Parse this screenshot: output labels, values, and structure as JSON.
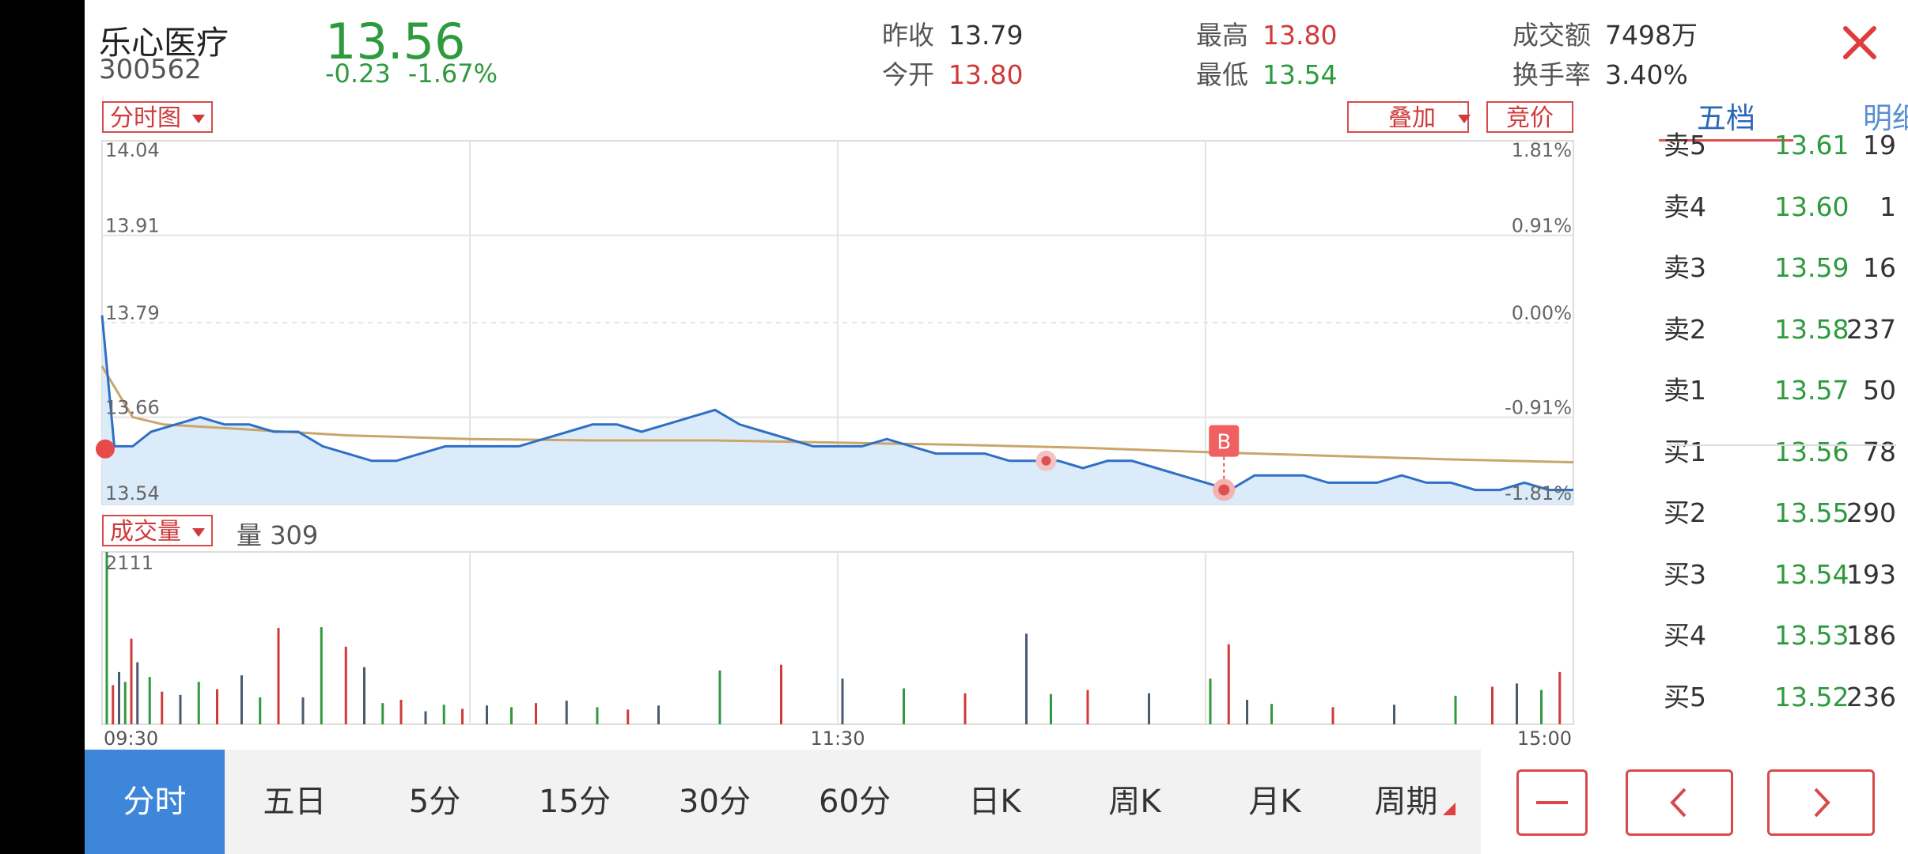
{
  "header": {
    "name": "乐心医疗",
    "code": "300562",
    "price": "13.56",
    "change": "-0.23",
    "change_pct": "-1.67%",
    "close_icon": "close-icon",
    "stats": [
      {
        "label": "昨收",
        "value": "13.79",
        "tone": "flat"
      },
      {
        "label": "今开",
        "value": "13.80",
        "tone": "up"
      },
      {
        "label": "最高",
        "value": "13.80",
        "tone": "up"
      },
      {
        "label": "最低",
        "value": "13.54",
        "tone": "down"
      },
      {
        "label": "成交额",
        "value": "7498万",
        "tone": "flat"
      },
      {
        "label": "换手率",
        "value": "3.40%",
        "tone": "flat"
      }
    ]
  },
  "chart_controls": {
    "chart_type": "分时图",
    "overlay": "叠加",
    "auction": "竞价",
    "volume_selector": "成交量",
    "volume_label": "量",
    "volume_value": "309"
  },
  "order_book": {
    "tabs": [
      "五档",
      "明细"
    ],
    "active_tab": "五档",
    "asks": [
      {
        "label": "卖5",
        "price": "13.61",
        "volume": "19"
      },
      {
        "label": "卖4",
        "price": "13.60",
        "volume": "1"
      },
      {
        "label": "卖3",
        "price": "13.59",
        "volume": "16"
      },
      {
        "label": "卖2",
        "price": "13.58",
        "volume": "237"
      },
      {
        "label": "卖1",
        "price": "13.57",
        "volume": "50"
      }
    ],
    "bids": [
      {
        "label": "买1",
        "price": "13.56",
        "volume": "78"
      },
      {
        "label": "买2",
        "price": "13.55",
        "volume": "290"
      },
      {
        "label": "买3",
        "price": "13.54",
        "volume": "193"
      },
      {
        "label": "买4",
        "price": "13.53",
        "volume": "186"
      },
      {
        "label": "买5",
        "price": "13.52",
        "volume": "236"
      }
    ]
  },
  "periods": [
    "分时",
    "五日",
    "5分",
    "15分",
    "30分",
    "60分",
    "日K",
    "周K",
    "月K",
    "周期"
  ],
  "active_period": "分时",
  "nav_icons": [
    "minus-icon",
    "chevron-left-icon",
    "chevron-right-icon"
  ],
  "colors": {
    "up": "#d03a3a",
    "down": "#2e9a3e",
    "price_line": "#2f6fc4",
    "avg_line": "#c9a66b",
    "area": "#dcebfa",
    "accent": "#3e86d9"
  },
  "chart_data": [
    {
      "type": "line",
      "title": "",
      "x_ticks": [
        "09:30",
        "11:30",
        "15:00"
      ],
      "y_ticks": [
        "14.04",
        "13.91",
        "13.79",
        "13.66",
        "13.54"
      ],
      "y_right_ticks": [
        "1.81%",
        "0.91%",
        "0.00%",
        "-0.91%",
        "-1.81%"
      ],
      "ylim": [
        13.54,
        14.04
      ],
      "prev_close": 13.79,
      "x_minutes_max": 240,
      "series": [
        {
          "name": "",
          "x": [
            0,
            2,
            5,
            8,
            12,
            16,
            20,
            24,
            28,
            32,
            36,
            40,
            44,
            48,
            52,
            56,
            60,
            64,
            68,
            72,
            76,
            80,
            84,
            88,
            92,
            96,
            100,
            104,
            108,
            112,
            116,
            120,
            124,
            128,
            132,
            136,
            140,
            144,
            148,
            152,
            156,
            160,
            164,
            168,
            172,
            176,
            180,
            184,
            188,
            192,
            196,
            200,
            204,
            208,
            212,
            216,
            220,
            224,
            228,
            232,
            236,
            240
          ],
          "y": [
            13.8,
            13.62,
            13.62,
            13.64,
            13.65,
            13.66,
            13.65,
            13.65,
            13.64,
            13.64,
            13.62,
            13.61,
            13.6,
            13.6,
            13.61,
            13.62,
            13.62,
            13.62,
            13.62,
            13.63,
            13.64,
            13.65,
            13.65,
            13.64,
            13.65,
            13.66,
            13.67,
            13.65,
            13.64,
            13.63,
            13.62,
            13.62,
            13.62,
            13.63,
            13.62,
            13.61,
            13.61,
            13.61,
            13.6,
            13.6,
            13.6,
            13.59,
            13.6,
            13.6,
            13.59,
            13.58,
            13.57,
            13.56,
            13.58,
            13.58,
            13.58,
            13.57,
            13.57,
            13.57,
            13.58,
            13.57,
            13.57,
            13.56,
            13.56,
            13.57,
            13.56,
            13.56
          ]
        },
        {
          "name": "",
          "x": [
            0,
            5,
            10,
            20,
            40,
            60,
            80,
            100,
            120,
            140,
            160,
            180,
            200,
            220,
            240
          ],
          "y": [
            13.73,
            13.66,
            13.65,
            13.645,
            13.635,
            13.63,
            13.628,
            13.628,
            13.625,
            13.622,
            13.618,
            13.612,
            13.607,
            13.602,
            13.598
          ]
        }
      ],
      "markers": [
        {
          "label": "",
          "x": 3,
          "y": 13.6
        },
        {
          "label": "",
          "x": 154,
          "y": 13.6
        },
        {
          "label": "B",
          "x": 183,
          "y": 13.56
        }
      ]
    },
    {
      "type": "bar",
      "title": "",
      "y_ticks": [
        "2111"
      ],
      "ylim": [
        0,
        2111
      ],
      "x_ticks": [
        "09:30",
        "11:30",
        "15:00"
      ],
      "x": [
        0,
        1,
        2,
        3,
        4,
        5,
        7,
        9,
        12,
        15,
        18,
        22,
        25,
        28,
        32,
        35,
        39,
        42,
        45,
        48,
        52,
        55,
        58,
        62,
        66,
        70,
        75,
        80,
        85,
        90,
        100,
        110,
        120,
        130,
        140,
        150,
        154,
        160,
        170,
        180,
        183,
        186,
        190,
        200,
        210,
        220,
        226,
        230,
        234,
        237
      ],
      "values": [
        2111,
        480,
        640,
        520,
        1050,
        760,
        580,
        400,
        360,
        520,
        430,
        600,
        330,
        1180,
        330,
        1190,
        950,
        700,
        260,
        300,
        160,
        240,
        190,
        230,
        210,
        260,
        290,
        210,
        180,
        230,
        660,
        730,
        560,
        440,
        380,
        1110,
        370,
        420,
        380,
        560,
        980,
        300,
        250,
        210,
        240,
        350,
        460,
        500,
        420,
        640
      ]
    }
  ]
}
